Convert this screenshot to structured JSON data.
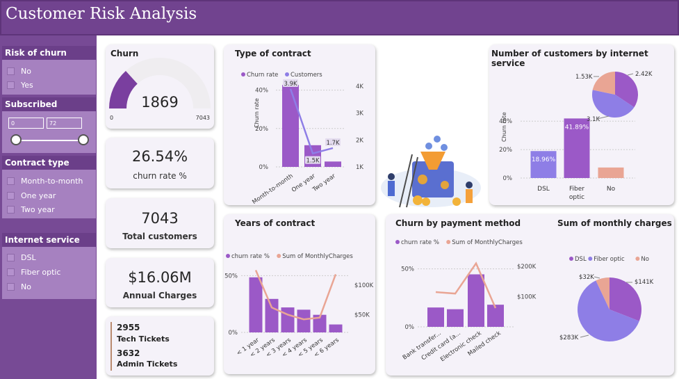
{
  "header": {
    "title": "Customer Risk Analysis"
  },
  "colors": {
    "header": "#71438f",
    "sidebar": "#774a95",
    "purple": "#9b59c7",
    "light_purple": "#8e7ee6",
    "peach": "#e9a594"
  },
  "filters": {
    "risk": {
      "title": "Risk of churn",
      "options": [
        "No",
        "Yes"
      ]
    },
    "subscribed": {
      "title": "Subscribed (Month)",
      "min": "0",
      "max": "72"
    },
    "contract": {
      "title": "Contract type",
      "options": [
        "Month-to-month",
        "One year",
        "Two year"
      ]
    },
    "internet": {
      "title": "Internet service",
      "options": [
        "DSL",
        "Fiber optic",
        "No"
      ]
    }
  },
  "churn_card": {
    "title": "Churn",
    "value": "1869",
    "min": "0",
    "max": "7043"
  },
  "kpis": {
    "churn_rate": {
      "value": "26.54%",
      "label": "churn rate %"
    },
    "total_customers": {
      "value": "7043",
      "label": "Total customers"
    },
    "annual_charges": {
      "value": "$16.06M",
      "label": "Annual Charges"
    }
  },
  "tickets": {
    "tech_value": "2955",
    "tech_label": "Tech Tickets",
    "admin_value": "3632",
    "admin_label": "Admin Tickets"
  },
  "chart_data": [
    {
      "id": "contract",
      "type": "bar",
      "title": "Type of contract",
      "legend": [
        "Churn rate",
        "Customers"
      ],
      "categories": [
        "Month-to-month",
        "One year",
        "Two year"
      ],
      "series": [
        {
          "name": "Churn rate",
          "values": [
            42.7,
            11.3,
            2.8
          ]
        },
        {
          "name": "Customers",
          "values": [
            3.9,
            1.5,
            1.7
          ]
        }
      ],
      "data_labels": [
        "3.9K",
        "1.5K",
        "1.7K"
      ],
      "ylabel": "Churn rate",
      "yticks": [
        "0%",
        "20%",
        "40%"
      ],
      "y2ticks": [
        "1K",
        "2K",
        "3K",
        "4K"
      ],
      "ylim": [
        0,
        50
      ],
      "y2lim": [
        1,
        4
      ]
    },
    {
      "id": "internet",
      "type": "bar",
      "title": "Number of customers by internet service",
      "categories": [
        "DSL",
        "Fiber optic",
        "No"
      ],
      "values": [
        18.96,
        41.89,
        7.4
      ],
      "data_labels": [
        "18.96%",
        "41.89%",
        ""
      ],
      "ylabel": "Churn rate",
      "yticks": [
        "0%",
        "20%",
        "40%"
      ],
      "ylim": [
        0,
        45
      ]
    },
    {
      "id": "internet_pie",
      "type": "pie",
      "categories": [
        "DSL",
        "Fiber optic",
        "No"
      ],
      "values": [
        2.42,
        3.1,
        1.53
      ],
      "labels": [
        "2.42K",
        "3.1K",
        "1.53K"
      ]
    },
    {
      "id": "years",
      "type": "bar",
      "title": "Years of contract",
      "legend": [
        "churn rate %",
        "Sum of MonthlyCharges"
      ],
      "categories": [
        "< 1 year",
        "< 2 years",
        "< 3 years",
        "< 4 years",
        "< 5 years",
        "< 6 years"
      ],
      "series": [
        {
          "name": "churn rate %",
          "values": [
            48.5,
            29.5,
            22,
            20,
            15.5,
            7
          ]
        },
        {
          "name": "Sum of MonthlyCharges",
          "values": [
            125,
            62,
            50,
            42,
            45,
            118
          ]
        }
      ],
      "yticks": [
        "0%",
        "50%"
      ],
      "y2ticks": [
        "$50K",
        "$100K"
      ],
      "ylim": [
        0,
        60
      ],
      "y2lim": [
        20,
        135
      ]
    },
    {
      "id": "payment",
      "type": "bar",
      "title": "Churn by payment method",
      "legend": [
        "churn rate %",
        "Sum of MonthlyCharges"
      ],
      "categories": [
        "Bank transfer...",
        "Credit card (a...",
        "Electronic check",
        "Mailed check"
      ],
      "series": [
        {
          "name": "churn rate %",
          "values": [
            16.7,
            15.2,
            45.3,
            19.1
          ]
        },
        {
          "name": "Sum of MonthlyCharges",
          "values": [
            115,
            110,
            210,
            62
          ]
        }
      ],
      "yticks": [
        "0%",
        "50%"
      ],
      "y2ticks": [
        "$100K",
        "$200K"
      ],
      "ylim": [
        0,
        60
      ],
      "y2lim": [
        0,
        230
      ]
    },
    {
      "id": "monthly",
      "type": "pie",
      "title": "Sum of monthly charges",
      "legend": [
        "DSL",
        "Fiber optic",
        "No"
      ],
      "categories": [
        "DSL",
        "Fiber optic",
        "No"
      ],
      "values": [
        141,
        283,
        32
      ],
      "labels": [
        "$141K",
        "$283K",
        "$32K"
      ]
    }
  ]
}
